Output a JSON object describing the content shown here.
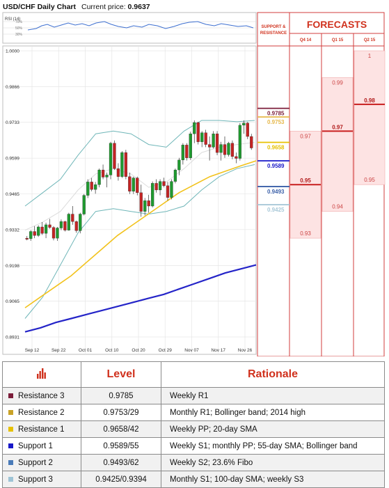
{
  "header": {
    "title": "USD/CHF Daily Chart",
    "price_label": "Current price:",
    "price_value": "0.9637"
  },
  "rsi": {
    "label": "RSI (14)",
    "levels": [
      "70%",
      "50%",
      "30%"
    ]
  },
  "chart_data": {
    "type": "candlestick",
    "title": "USD/CHF Daily Chart",
    "y_ticks": [
      "1.0000",
      "0.9866",
      "0.9733",
      "0.9599",
      "0.9465",
      "0.9332",
      "0.9198",
      "0.9065",
      "0.8931"
    ],
    "ylim": [
      0.8931,
      1.0
    ],
    "x_ticks": [
      "Sep 12",
      "Sep 22",
      "Oct 01",
      "Oct 10",
      "Oct 20",
      "Oct 29",
      "Nov 07",
      "Nov 17",
      "Nov 26"
    ],
    "candles": [
      [
        0.93,
        0.9308,
        0.9292,
        0.9296
      ],
      [
        0.9298,
        0.933,
        0.929,
        0.9325
      ],
      [
        0.9325,
        0.9345,
        0.93,
        0.931
      ],
      [
        0.931,
        0.9348,
        0.9305,
        0.9342
      ],
      [
        0.9342,
        0.936,
        0.9312,
        0.9318
      ],
      [
        0.9318,
        0.9358,
        0.93,
        0.935
      ],
      [
        0.935,
        0.9372,
        0.9335,
        0.934
      ],
      [
        0.934,
        0.9345,
        0.9292,
        0.93
      ],
      [
        0.93,
        0.9342,
        0.929,
        0.9338
      ],
      [
        0.9338,
        0.937,
        0.933,
        0.9362
      ],
      [
        0.9362,
        0.9365,
        0.9325,
        0.933
      ],
      [
        0.933,
        0.9395,
        0.9328,
        0.939
      ],
      [
        0.939,
        0.942,
        0.935,
        0.9362
      ],
      [
        0.9362,
        0.9366,
        0.932,
        0.9328
      ],
      [
        0.9328,
        0.9395,
        0.9318,
        0.939
      ],
      [
        0.939,
        0.9465,
        0.9385,
        0.946
      ],
      [
        0.946,
        0.952,
        0.945,
        0.951
      ],
      [
        0.951,
        0.9525,
        0.9475,
        0.9482
      ],
      [
        0.9482,
        0.951,
        0.9466,
        0.95
      ],
      [
        0.95,
        0.956,
        0.949,
        0.9555
      ],
      [
        0.9555,
        0.9575,
        0.952,
        0.9528
      ],
      [
        0.9528,
        0.9545,
        0.949,
        0.9536
      ],
      [
        0.9536,
        0.966,
        0.952,
        0.9655
      ],
      [
        0.9655,
        0.9665,
        0.9555,
        0.956
      ],
      [
        0.956,
        0.958,
        0.9515,
        0.953
      ],
      [
        0.953,
        0.9625,
        0.9525,
        0.962
      ],
      [
        0.962,
        0.963,
        0.952,
        0.953
      ],
      [
        0.953,
        0.9545,
        0.9465,
        0.9475
      ],
      [
        0.9475,
        0.953,
        0.9465,
        0.9525
      ],
      [
        0.9525,
        0.953,
        0.946,
        0.947
      ],
      [
        0.947,
        0.95,
        0.938,
        0.94
      ],
      [
        0.94,
        0.945,
        0.9385,
        0.944
      ],
      [
        0.944,
        0.9462,
        0.9395,
        0.942
      ],
      [
        0.942,
        0.9512,
        0.9415,
        0.9505
      ],
      [
        0.9505,
        0.952,
        0.947,
        0.948
      ],
      [
        0.948,
        0.952,
        0.946,
        0.9512
      ],
      [
        0.9512,
        0.9526,
        0.949,
        0.9496
      ],
      [
        0.9496,
        0.951,
        0.944,
        0.9452
      ],
      [
        0.9452,
        0.952,
        0.9445,
        0.9512
      ],
      [
        0.9512,
        0.956,
        0.9505,
        0.9555
      ],
      [
        0.9555,
        0.96,
        0.9535,
        0.9592
      ],
      [
        0.9592,
        0.9655,
        0.9575,
        0.9648
      ],
      [
        0.9648,
        0.9655,
        0.959,
        0.96
      ],
      [
        0.96,
        0.9698,
        0.9592,
        0.969
      ],
      [
        0.969,
        0.974,
        0.9655,
        0.9732
      ],
      [
        0.9732,
        0.9735,
        0.965,
        0.966
      ],
      [
        0.966,
        0.97,
        0.964,
        0.9694
      ],
      [
        0.9694,
        0.9705,
        0.964,
        0.965
      ],
      [
        0.965,
        0.968,
        0.959,
        0.964
      ],
      [
        0.964,
        0.97,
        0.9635,
        0.969
      ],
      [
        0.969,
        0.97,
        0.961,
        0.962
      ],
      [
        0.962,
        0.966,
        0.959,
        0.965
      ],
      [
        0.965,
        0.968,
        0.96,
        0.9612
      ],
      [
        0.9612,
        0.966,
        0.9605,
        0.9655
      ],
      [
        0.9655,
        0.9665,
        0.9595,
        0.9605
      ],
      [
        0.9605,
        0.962,
        0.958,
        0.9598
      ],
      [
        0.9598,
        0.973,
        0.959,
        0.9722
      ],
      [
        0.9722,
        0.974,
        0.969,
        0.973
      ],
      [
        0.973,
        0.9735,
        0.967,
        0.968
      ],
      [
        0.968,
        0.969,
        0.963,
        0.9637
      ]
    ],
    "bollinger_upper": [
      0.942,
      0.947,
      0.952,
      0.961,
      0.969,
      0.97,
      0.969,
      0.965,
      0.964,
      0.97,
      0.974,
      0.974,
      0.9735,
      0.974
    ],
    "bollinger_middle": [
      0.933,
      0.936,
      0.94,
      0.948,
      0.954,
      0.956,
      0.954,
      0.949,
      0.951,
      0.956,
      0.962,
      0.964,
      0.965,
      0.9658
    ],
    "bollinger_lower": [
      0.9,
      0.908,
      0.92,
      0.932,
      0.94,
      0.941,
      0.94,
      0.939,
      0.94,
      0.942,
      0.948,
      0.953,
      0.956,
      0.9575
    ],
    "sma_55": [
      0.904,
      0.908,
      0.912,
      0.916,
      0.921,
      0.926,
      0.931,
      0.935,
      0.939,
      0.943,
      0.947,
      0.95,
      0.953,
      0.955,
      0.957,
      0.9589
    ],
    "sma_100": [
      0.895,
      0.8965,
      0.8985,
      0.9,
      0.9015,
      0.903,
      0.9045,
      0.906,
      0.9075,
      0.909,
      0.911,
      0.913,
      0.915,
      0.917,
      0.9185,
      0.92
    ],
    "support_resistance": [
      {
        "value": 0.9785,
        "label": "0.9785",
        "color": "#7b1d3a"
      },
      {
        "value": 0.9753,
        "label": "0.9753",
        "color": "#e6b84a"
      },
      {
        "value": 0.9658,
        "label": "0.9658",
        "color": "#e6c100"
      },
      {
        "value": 0.9589,
        "label": "0.9589",
        "color": "#1818c8"
      },
      {
        "value": 0.9493,
        "label": "0.9493",
        "color": "#3a5fa8"
      },
      {
        "value": 0.9425,
        "label": "0.9425",
        "color": "#a8c8d8"
      }
    ],
    "forecasts": {
      "title": "FORECASTS",
      "sr_label_line1": "SUPPORT &",
      "sr_label_line2": "RESISTANCE",
      "columns": [
        {
          "name": "Q4 14",
          "high": 0.97,
          "median": 0.95,
          "low": 0.93,
          "high_label": "0.97",
          "median_label": "0.95",
          "low_label": "0.93"
        },
        {
          "name": "Q1 15",
          "high": 0.99,
          "median": 0.97,
          "low": 0.94,
          "high_label": "0.99",
          "median_label": "0.97",
          "low_label": "0.94"
        },
        {
          "name": "Q2 15",
          "high": 1.0,
          "median": 0.98,
          "low": 0.95,
          "high_label": "1",
          "median_label": "0.98",
          "low_label": "0.95"
        }
      ]
    }
  },
  "table": {
    "header_level": "Level",
    "header_rationale": "Rationale",
    "icon": "bar-chart-icon",
    "rows": [
      {
        "name": "Resistance 3",
        "level": "0.9785",
        "rationale": "Weekly R1",
        "color": "#7b1d3a"
      },
      {
        "name": "Resistance 2",
        "level": "0.9753/29",
        "rationale": "Monthly R1; Bollinger band; 2014 high",
        "color": "#c9a227"
      },
      {
        "name": "Resistance 1",
        "level": "0.9658/42",
        "rationale": "Weekly PP; 20-day SMA",
        "color": "#e6c100"
      },
      {
        "name": "Support 1",
        "level": "0.9589/55",
        "rationale": "Weekly S1; monthly PP; 55-day SMA; Bollinger band",
        "color": "#1818c8"
      },
      {
        "name": "Support 2",
        "level": "0.9493/62",
        "rationale": "Weekly S2; 23.6% Fibo",
        "color": "#4a7bb8"
      },
      {
        "name": "Support 3",
        "level": "0.9425/0.9394",
        "rationale": "Monthly S1; 100-day SMA; weekly S3",
        "color": "#9ec4d6"
      }
    ]
  }
}
